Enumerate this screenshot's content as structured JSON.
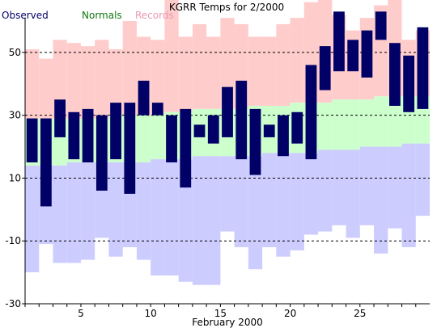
{
  "chart_data": {
    "type": "bar",
    "title": "KGRR Temps for 2/2000",
    "xlabel": "February 2000",
    "ylabel": "",
    "legend": [
      {
        "name": "Observed",
        "color": "#000066"
      },
      {
        "name": "Normals",
        "color": "#117711"
      },
      {
        "name": "Records",
        "color": "#e89ab0"
      }
    ],
    "legend_placement": "top-left",
    "ylim": [
      -30,
      60
    ],
    "xlim": [
      0.5,
      29.5
    ],
    "grid": "dashed horizontal at y ticks",
    "x_ticks": [
      5,
      10,
      15,
      20,
      25
    ],
    "y_ticks": [
      -30,
      -10,
      10,
      30,
      50
    ],
    "days": [
      1,
      2,
      3,
      4,
      5,
      6,
      7,
      8,
      9,
      10,
      11,
      12,
      13,
      14,
      15,
      16,
      17,
      18,
      19,
      20,
      21,
      22,
      23,
      24,
      25,
      26,
      27,
      28,
      29
    ],
    "series": [
      {
        "name": "Records",
        "color": "#ffcccc",
        "record_high": [
          51,
          48,
          54,
          53,
          52,
          54,
          51,
          60,
          55,
          54,
          69,
          55,
          59,
          55,
          61,
          59,
          55,
          55,
          59,
          61,
          66,
          67,
          62,
          57,
          61,
          65,
          67,
          54,
          57
        ],
        "record_low": [
          -20,
          -11,
          -17,
          -17,
          -16,
          -9,
          -15,
          -12,
          -16,
          -21,
          -21,
          -23,
          -24,
          -24,
          -7,
          -12,
          -19,
          -12,
          -15,
          -13,
          -8,
          -7,
          -5,
          -9,
          -5,
          -14,
          -6,
          -12,
          -2
        ]
      },
      {
        "name": "Normals",
        "color": "#ccffcc",
        "normal_high": [
          29,
          29,
          29,
          29,
          29,
          29,
          30,
          30,
          30,
          30,
          31,
          31,
          32,
          32,
          32,
          32,
          33,
          33,
          33,
          34,
          34,
          34,
          35,
          35,
          35,
          36,
          36,
          36,
          36
        ],
        "normal_low": [
          14,
          14,
          14,
          15,
          15,
          15,
          15,
          15,
          15,
          16,
          16,
          16,
          17,
          17,
          17,
          17,
          17,
          18,
          18,
          18,
          18,
          19,
          19,
          19,
          20,
          20,
          20,
          21,
          21
        ]
      },
      {
        "name": "Observed",
        "color": "#000066",
        "high": [
          29,
          29,
          35,
          31,
          32,
          30,
          34,
          34,
          41,
          34,
          30,
          32,
          27,
          30,
          39,
          41,
          32,
          27,
          30,
          31,
          46,
          52,
          63,
          54,
          57,
          63,
          53,
          49,
          58
        ],
        "low": [
          15,
          1,
          23,
          16,
          15,
          6,
          16,
          5,
          30,
          30,
          15,
          7,
          23,
          21,
          23,
          16,
          11,
          23,
          17,
          21,
          16,
          38,
          44,
          44,
          42,
          54,
          33,
          31,
          32
        ]
      }
    ]
  }
}
